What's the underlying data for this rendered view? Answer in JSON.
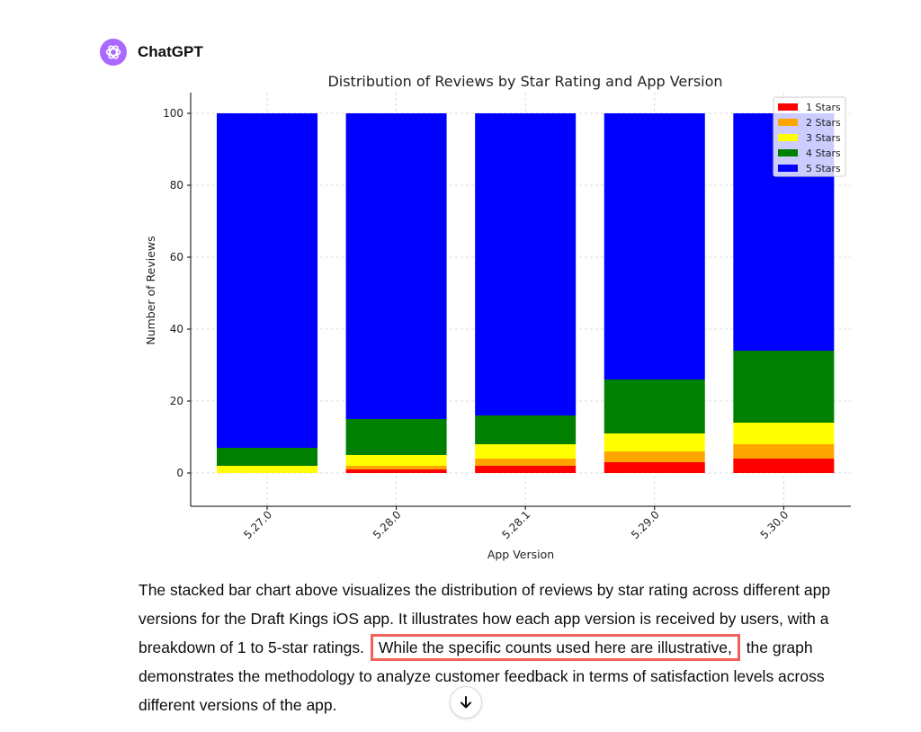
{
  "header": {
    "name": "ChatGPT",
    "avatar_icon": "openai-logo-icon",
    "avatar_color": "#ab68ff"
  },
  "chart_data": {
    "type": "bar",
    "stacked": true,
    "title": "Distribution of Reviews by Star Rating and App Version",
    "xlabel": "App Version",
    "ylabel": "Number of Reviews",
    "ylim": [
      0,
      100
    ],
    "yticks": [
      0,
      20,
      40,
      60,
      80,
      100
    ],
    "grid": true,
    "legend_position": "top-right",
    "categories": [
      "5.27.0",
      "5.28.0",
      "5.28.1",
      "5.29.0",
      "5.30.0"
    ],
    "series": [
      {
        "name": "1 Stars",
        "color": "#ff0000",
        "values": [
          0,
          1,
          2,
          3,
          4
        ]
      },
      {
        "name": "2 Stars",
        "color": "#ffa500",
        "values": [
          0,
          1,
          2,
          3,
          4
        ]
      },
      {
        "name": "3 Stars",
        "color": "#ffff00",
        "values": [
          2,
          3,
          4,
          5,
          6
        ]
      },
      {
        "name": "4 Stars",
        "color": "#008000",
        "values": [
          5,
          10,
          8,
          15,
          20
        ]
      },
      {
        "name": "5 Stars",
        "color": "#0000ff",
        "values": [
          93,
          85,
          84,
          74,
          66
        ]
      }
    ]
  },
  "message": {
    "before": "The stacked bar chart above visualizes the distribution of reviews by star rating across different app versions for the Draft Kings iOS app. It illustrates how each app version is received by users, with a breakdown of 1 to 5-star ratings.",
    "highlighted": "While the specific counts used here are illustrative,",
    "after": "the graph demonstrates the methodology to analyze customer feedback in terms of satisfaction levels across different versions of the app.",
    "highlight_color": "#f0625c"
  },
  "scroll_button": {
    "icon": "arrow-down-icon"
  }
}
